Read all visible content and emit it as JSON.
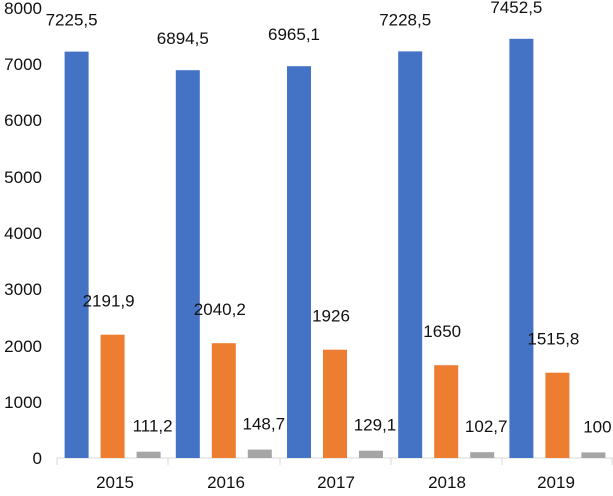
{
  "chart_data": {
    "type": "bar",
    "categories": [
      "2015",
      "2016",
      "2017",
      "2018",
      "2019"
    ],
    "series": [
      {
        "values": [
          7225.5,
          6894.5,
          6965.1,
          7228.5,
          7452.5
        ],
        "labels": [
          "7225,5",
          "6894,5",
          "6965,1",
          "7228,5",
          "7452,5"
        ],
        "color": "#4472C4"
      },
      {
        "values": [
          2191.9,
          2040.2,
          1926,
          1650,
          1515.8
        ],
        "labels": [
          "2191,9",
          "2040,2",
          "1926",
          "1650",
          "1515,8"
        ],
        "color": "#ED7D31"
      },
      {
        "values": [
          111.2,
          148.7,
          129.1,
          102.7,
          100
        ],
        "labels": [
          "111,2",
          "148,7",
          "129,1",
          "102,7",
          "100"
        ],
        "color": "#A5A5A5"
      }
    ],
    "y_ticks": [
      "0",
      "1000",
      "2000",
      "3000",
      "4000",
      "5000",
      "6000",
      "7000",
      "8000"
    ],
    "ylim": [
      0,
      8000
    ],
    "title": "",
    "xlabel": "",
    "ylabel": "",
    "grid": false,
    "legend": "none"
  }
}
